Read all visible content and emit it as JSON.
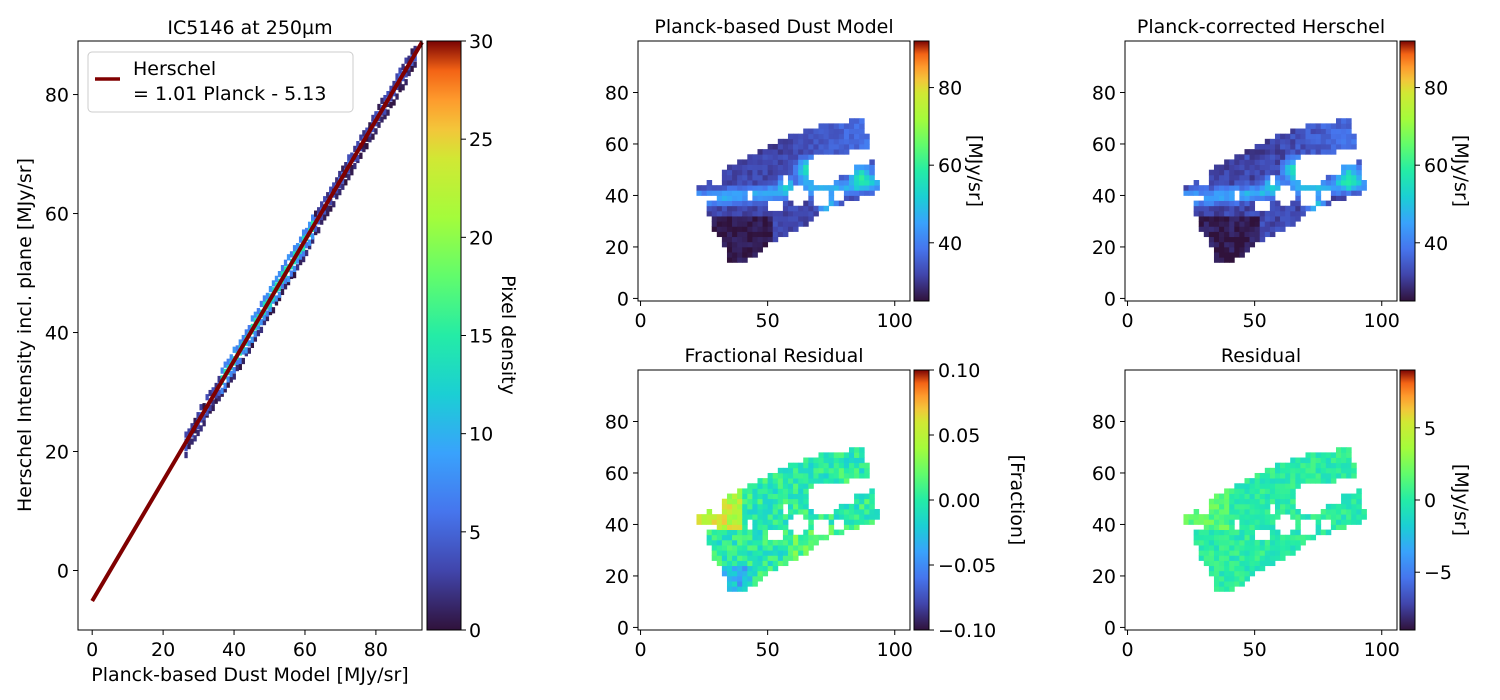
{
  "chart_data": [
    {
      "type": "scatter",
      "subtype": "2d-histogram",
      "title": "IC5146 at 250µm",
      "xlabel": "Planck-based Dust Model [MJy/sr]",
      "ylabel": "Herschel Intensity incl. plane [MJy/sr]",
      "xlim": [
        -4,
        93
      ],
      "ylim": [
        -10,
        89
      ],
      "xticks": [
        0,
        20,
        40,
        60,
        80
      ],
      "yticks": [
        0,
        20,
        40,
        60,
        80
      ],
      "legend": {
        "line1": "Herschel",
        "line2": "= 1.01 Planck - 5.13",
        "placement": "upper-left"
      },
      "fit": {
        "slope": 1.01,
        "intercept": -5.13,
        "x_start": 0,
        "x_end": 93,
        "color": "#800000"
      },
      "density_range": [
        0,
        30
      ],
      "colorbar": {
        "label": "Pixel density",
        "ticks": [
          0,
          5,
          10,
          15,
          20,
          25,
          30
        ],
        "colormap": "turbo"
      },
      "cloud": {
        "x_min": 26,
        "x_max": 91,
        "core_x_min": 36,
        "core_x_max": 62
      }
    },
    {
      "type": "heatmap",
      "title": "Planck-based Dust Model",
      "xlim": [
        -1,
        106
      ],
      "ylim": [
        -1,
        100
      ],
      "xticks": [
        0,
        50,
        100
      ],
      "yticks": [
        0,
        20,
        40,
        60,
        80
      ],
      "colorbar": {
        "label": "[MJy/sr]",
        "min": 25,
        "max": 92,
        "ticks": [
          40,
          60,
          80
        ],
        "colormap": "turbo"
      },
      "field": "dust"
    },
    {
      "type": "heatmap",
      "title": "Planck-corrected Herschel",
      "xlim": [
        -1,
        106
      ],
      "ylim": [
        -1,
        100
      ],
      "xticks": [
        0,
        50,
        100
      ],
      "yticks": [
        0,
        20,
        40,
        60,
        80
      ],
      "colorbar": {
        "label": "[MJy/sr]",
        "min": 25,
        "max": 92,
        "ticks": [
          40,
          60,
          80
        ],
        "colormap": "turbo"
      },
      "field": "herschel"
    },
    {
      "type": "heatmap",
      "title": "Fractional Residual",
      "xlim": [
        -1,
        106
      ],
      "ylim": [
        -1,
        100
      ],
      "xticks": [
        0,
        50,
        100
      ],
      "yticks": [
        0,
        20,
        40,
        60,
        80
      ],
      "colorbar": {
        "label": "[Fraction]",
        "min": -0.1,
        "max": 0.1,
        "ticks": [
          0.1,
          0.05,
          0.0,
          -0.05,
          -0.1
        ],
        "tick_labels": [
          "0.10",
          "0.05",
          "0.00",
          "−0.05",
          "−0.10"
        ],
        "colormap": "turbo"
      },
      "field": "fraction"
    },
    {
      "type": "heatmap",
      "title": "Residual",
      "xlim": [
        -1,
        106
      ],
      "ylim": [
        -1,
        100
      ],
      "xticks": [
        0,
        50,
        100
      ],
      "yticks": [
        0,
        20,
        40,
        60,
        80
      ],
      "colorbar": {
        "label": "[MJy/sr]",
        "min": -9,
        "max": 9,
        "ticks": [
          5,
          0,
          -5
        ],
        "tick_labels": [
          "5",
          "0",
          "−5"
        ],
        "colormap": "turbo"
      },
      "field": "residual"
    }
  ]
}
